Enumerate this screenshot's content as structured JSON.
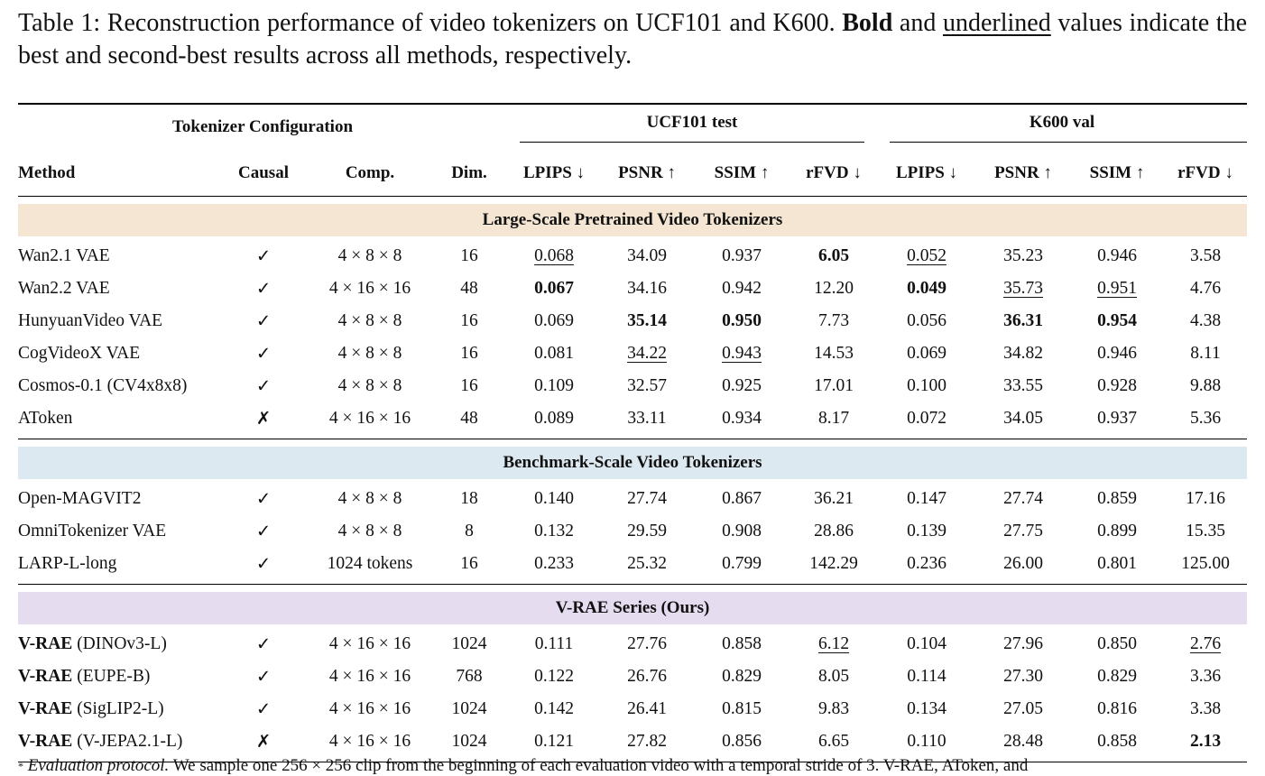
{
  "caption": {
    "prefix": "Table 1: Reconstruction performance of video tokenizers on UCF101 and K600. ",
    "bold_word": "Bold",
    "mid": " and ",
    "underlined_word": "underlined",
    "suffix": " values indicate the best and second-best results across all methods, respectively."
  },
  "header": {
    "config_group": "Tokenizer Configuration",
    "ucf_group": "UCF101 test",
    "k600_group": "K600 val",
    "columns": [
      "Method",
      "Causal",
      "Comp.",
      "Dim.",
      "LPIPS ↓",
      "PSNR ↑",
      "SSIM ↑",
      "rFVD ↓",
      "LPIPS ↓",
      "PSNR ↑",
      "SSIM ↑",
      "rFVD ↓"
    ]
  },
  "colors": {
    "section1": "#f5e6d3",
    "section2": "#dde9f0",
    "section3": "#e6dcf0"
  },
  "sections": [
    {
      "title": "Large-Scale Pretrained Video Tokenizers",
      "rows": [
        {
          "bold_name": "",
          "name": "Wan2.1 VAE",
          "causal": "✓",
          "comp": "4 × 8 × 8",
          "dim": "16",
          "vals": [
            "0.068",
            "34.09",
            "0.937",
            "6.05",
            "0.052",
            "35.23",
            "0.946",
            "3.58"
          ],
          "styles": [
            "u",
            "",
            "",
            "b",
            "u",
            "",
            "",
            ""
          ]
        },
        {
          "bold_name": "",
          "name": "Wan2.2 VAE",
          "causal": "✓",
          "comp": "4 × 16 × 16",
          "dim": "48",
          "vals": [
            "0.067",
            "34.16",
            "0.942",
            "12.20",
            "0.049",
            "35.73",
            "0.951",
            "4.76"
          ],
          "styles": [
            "b",
            "",
            "",
            "",
            "b",
            "u",
            "u",
            ""
          ]
        },
        {
          "bold_name": "",
          "name": "HunyuanVideo VAE",
          "causal": "✓",
          "comp": "4 × 8 × 8",
          "dim": "16",
          "vals": [
            "0.069",
            "35.14",
            "0.950",
            "7.73",
            "0.056",
            "36.31",
            "0.954",
            "4.38"
          ],
          "styles": [
            "",
            "b",
            "b",
            "",
            "",
            "b",
            "b",
            ""
          ]
        },
        {
          "bold_name": "",
          "name": "CogVideoX VAE",
          "causal": "✓",
          "comp": "4 × 8 × 8",
          "dim": "16",
          "vals": [
            "0.081",
            "34.22",
            "0.943",
            "14.53",
            "0.069",
            "34.82",
            "0.946",
            "8.11"
          ],
          "styles": [
            "",
            "u",
            "u",
            "",
            "",
            "",
            "",
            ""
          ]
        },
        {
          "bold_name": "",
          "name": "Cosmos-0.1 (CV4x8x8)",
          "causal": "✓",
          "comp": "4 × 8 × 8",
          "dim": "16",
          "vals": [
            "0.109",
            "32.57",
            "0.925",
            "17.01",
            "0.100",
            "33.55",
            "0.928",
            "9.88"
          ],
          "styles": [
            "",
            "",
            "",
            "",
            "",
            "",
            "",
            ""
          ]
        },
        {
          "bold_name": "",
          "name": "AToken",
          "causal": "✗",
          "comp": "4 × 16 × 16",
          "dim": "48",
          "vals": [
            "0.089",
            "33.11",
            "0.934",
            "8.17",
            "0.072",
            "34.05",
            "0.937",
            "5.36"
          ],
          "styles": [
            "",
            "",
            "",
            "",
            "",
            "",
            "",
            ""
          ]
        }
      ]
    },
    {
      "title": "Benchmark-Scale Video Tokenizers",
      "rows": [
        {
          "bold_name": "",
          "name": "Open-MAGVIT2",
          "causal": "✓",
          "comp": "4 × 8 × 8",
          "dim": "18",
          "vals": [
            "0.140",
            "27.74",
            "0.867",
            "36.21",
            "0.147",
            "27.74",
            "0.859",
            "17.16"
          ],
          "styles": [
            "",
            "",
            "",
            "",
            "",
            "",
            "",
            ""
          ]
        },
        {
          "bold_name": "",
          "name": "OmniTokenizer VAE",
          "causal": "✓",
          "comp": "4 × 8 × 8",
          "dim": "8",
          "vals": [
            "0.132",
            "29.59",
            "0.908",
            "28.86",
            "0.139",
            "27.75",
            "0.899",
            "15.35"
          ],
          "styles": [
            "",
            "",
            "",
            "",
            "",
            "",
            "",
            ""
          ]
        },
        {
          "bold_name": "",
          "name": "LARP-L-long",
          "causal": "✓",
          "comp": "1024 tokens",
          "dim": "16",
          "vals": [
            "0.233",
            "25.32",
            "0.799",
            "142.29",
            "0.236",
            "26.00",
            "0.801",
            "125.00"
          ],
          "styles": [
            "",
            "",
            "",
            "",
            "",
            "",
            "",
            ""
          ]
        }
      ]
    },
    {
      "title": "V-RAE Series (Ours)",
      "rows": [
        {
          "bold_name": "V-RAE",
          "name": " (DINOv3-L)",
          "causal": "✓",
          "comp": "4 × 16 × 16",
          "dim": "1024",
          "vals": [
            "0.111",
            "27.76",
            "0.858",
            "6.12",
            "0.104",
            "27.96",
            "0.850",
            "2.76"
          ],
          "styles": [
            "",
            "",
            "",
            "u",
            "",
            "",
            "",
            "u"
          ]
        },
        {
          "bold_name": "V-RAE",
          "name": " (EUPE-B)",
          "causal": "✓",
          "comp": "4 × 16 × 16",
          "dim": "768",
          "vals": [
            "0.122",
            "26.76",
            "0.829",
            "8.05",
            "0.114",
            "27.30",
            "0.829",
            "3.36"
          ],
          "styles": [
            "",
            "",
            "",
            "",
            "",
            "",
            "",
            ""
          ]
        },
        {
          "bold_name": "V-RAE",
          "name": " (SigLIP2-L)",
          "causal": "✓",
          "comp": "4 × 16 × 16",
          "dim": "1024",
          "vals": [
            "0.142",
            "26.41",
            "0.815",
            "9.83",
            "0.134",
            "27.05",
            "0.816",
            "3.38"
          ],
          "styles": [
            "",
            "",
            "",
            "",
            "",
            "",
            "",
            ""
          ]
        },
        {
          "bold_name": "V-RAE",
          "name": " (V-JEPA2.1-L)",
          "causal": "✗",
          "comp": "4 × 16 × 16",
          "dim": "1024",
          "vals": [
            "0.121",
            "27.82",
            "0.856",
            "6.65",
            "0.110",
            "28.48",
            "0.858",
            "2.13"
          ],
          "styles": [
            "",
            "",
            "",
            "",
            "",
            "",
            "",
            "b"
          ]
        }
      ]
    }
  ],
  "footnote": {
    "marker": "*",
    "italic": "Evaluation protocol.",
    "text": " We sample one 256 × 256 clip from the beginning of each evaluation video with a temporal stride of 3. V-RAE, AToken, and"
  }
}
